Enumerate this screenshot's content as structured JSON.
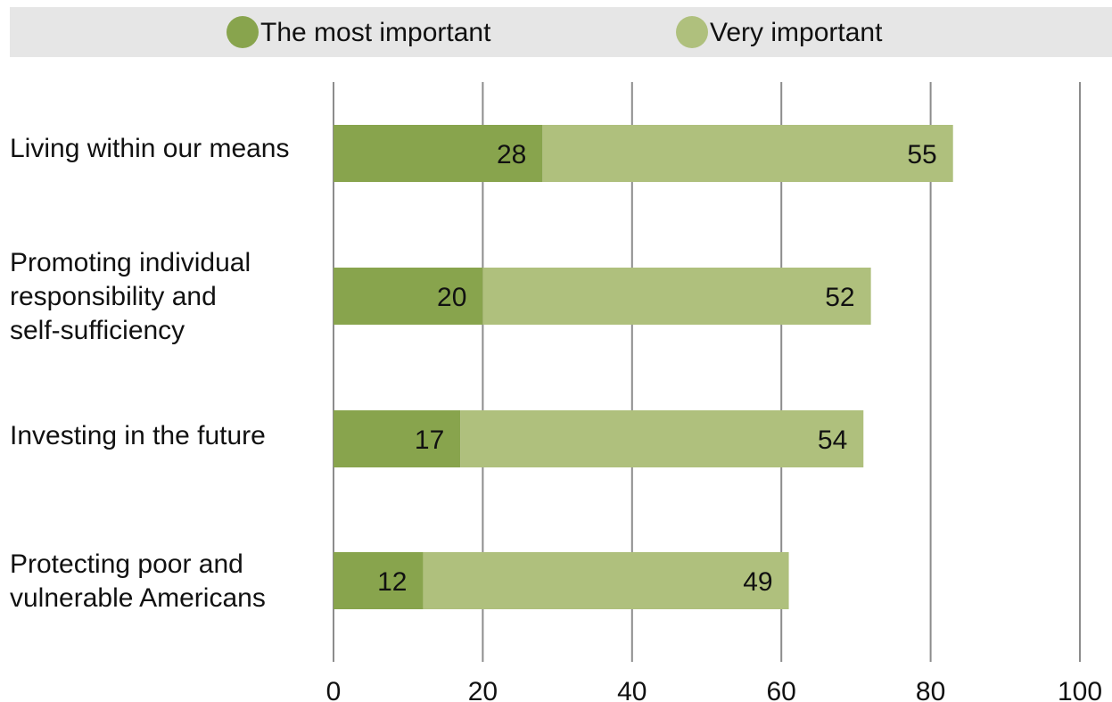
{
  "chart_data": {
    "type": "bar",
    "orientation": "horizontal",
    "stacked": true,
    "categories": [
      "Living within our means",
      "Promoting individual responsibility and self-sufficiency",
      "Investing in the future",
      "Protecting poor and vulnerable Americans"
    ],
    "category_lines": [
      [
        "Living within our means"
      ],
      [
        "Promoting individual",
        "responsibility and",
        "self-sufficiency"
      ],
      [
        "Investing in the future"
      ],
      [
        "Protecting poor and",
        "vulnerable Americans"
      ]
    ],
    "series": [
      {
        "name": "The most important",
        "values": [
          28,
          20,
          17,
          12
        ],
        "color": "#88a44d"
      },
      {
        "name": "Very important",
        "values": [
          55,
          52,
          54,
          49
        ],
        "color": "#afc07d"
      }
    ],
    "xlim": [
      0,
      100
    ],
    "xticks": [
      0,
      20,
      40,
      60,
      80,
      100
    ],
    "grid": true,
    "legend_position": "top",
    "title": "",
    "xlabel": "",
    "ylabel": ""
  }
}
